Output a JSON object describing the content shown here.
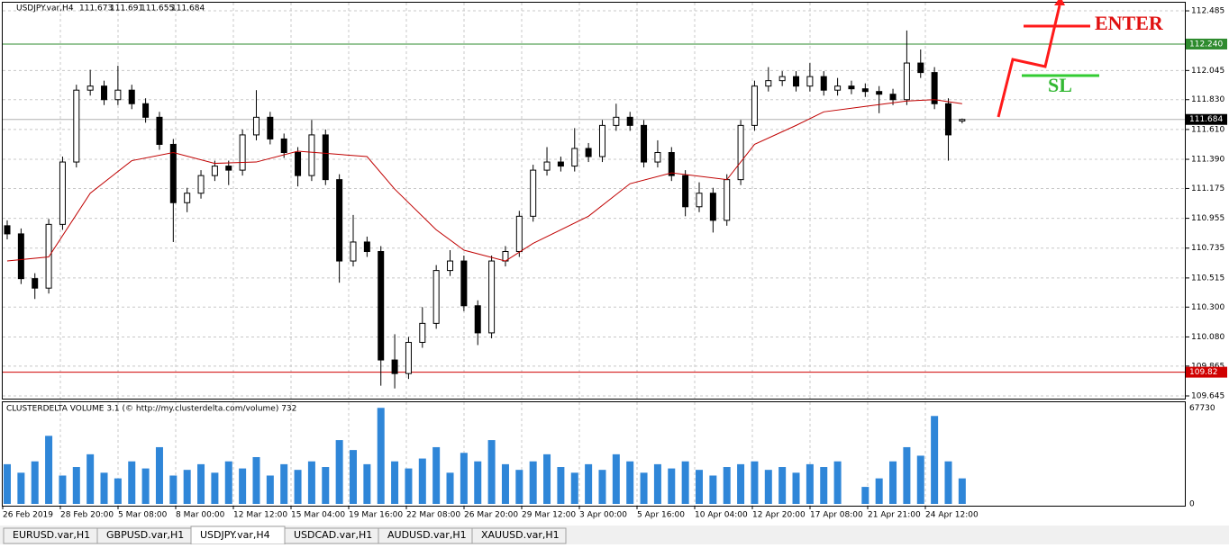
{
  "chart_data": {
    "type": "candlestick",
    "symbol": "USDJPY.var,H4",
    "ylim": [
      109.625,
      112.545
    ],
    "yticks": [
      112.485,
      112.045,
      {
        "value": 111.83,
        "label": "111.830"
      },
      {
        "value": 111.61,
        "label": "111.610"
      },
      {
        "value": 111.39,
        "label": "111.390"
      },
      111.175,
      110.955,
      110.735,
      110.515,
      {
        "value": 110.3,
        "label": "110.300"
      },
      {
        "value": 110.08,
        "label": "110.080"
      },
      109.865,
      109.645
    ],
    "grid": true,
    "time_labels": [
      "26 Feb 2019",
      "28 Feb 20:00",
      "5 Mar 08:00",
      "8 Mar 00:00",
      "12 Mar 12:00",
      "15 Mar 04:00",
      "19 Mar 16:00",
      "22 Mar 08:00",
      "26 Mar 20:00",
      "29 Mar 12:00",
      "3 Apr 00:00",
      "5 Apr 16:00",
      "10 Apr 04:00",
      "12 Apr 20:00",
      "17 Apr 08:00",
      "21 Apr 21:00",
      "24 Apr 12:00"
    ],
    "candles": [
      [
        110.9,
        110.94,
        110.8,
        110.84
      ],
      [
        110.84,
        110.88,
        110.47,
        110.51
      ],
      [
        110.51,
        110.55,
        110.36,
        110.44
      ],
      [
        110.44,
        110.95,
        110.4,
        110.91
      ],
      [
        110.91,
        111.41,
        110.87,
        111.37
      ],
      [
        111.37,
        111.94,
        111.33,
        111.9
      ],
      [
        111.9,
        112.05,
        111.86,
        111.93
      ],
      [
        111.93,
        111.97,
        111.79,
        111.83
      ],
      [
        111.83,
        112.08,
        111.79,
        111.9
      ],
      [
        111.9,
        111.94,
        111.76,
        111.8
      ],
      [
        111.8,
        111.84,
        111.66,
        111.7
      ],
      [
        111.7,
        111.74,
        111.46,
        111.5
      ],
      [
        111.5,
        111.54,
        110.78,
        111.07
      ],
      [
        111.07,
        111.18,
        111.0,
        111.14
      ],
      [
        111.14,
        111.31,
        111.1,
        111.27
      ],
      [
        111.27,
        111.38,
        111.23,
        111.34
      ],
      [
        111.34,
        111.38,
        111.2,
        111.31
      ],
      [
        111.31,
        111.61,
        111.27,
        111.57
      ],
      [
        111.57,
        111.9,
        111.53,
        111.7
      ],
      [
        111.7,
        111.74,
        111.5,
        111.54
      ],
      [
        111.54,
        111.58,
        111.4,
        111.44
      ],
      [
        111.44,
        111.48,
        111.19,
        111.27
      ],
      [
        111.27,
        111.68,
        111.23,
        111.57
      ],
      [
        111.57,
        111.61,
        111.2,
        111.24
      ],
      [
        111.24,
        111.28,
        110.48,
        110.64
      ],
      [
        110.64,
        110.98,
        110.6,
        110.78
      ],
      [
        110.78,
        110.82,
        110.67,
        110.71
      ],
      [
        110.71,
        110.75,
        109.72,
        109.91
      ],
      [
        109.91,
        110.1,
        109.7,
        109.81
      ],
      [
        109.81,
        110.08,
        109.77,
        110.04
      ],
      [
        110.04,
        110.3,
        110.0,
        110.18
      ],
      [
        110.18,
        110.61,
        110.14,
        110.57
      ],
      [
        110.57,
        110.72,
        110.53,
        110.64
      ],
      [
        110.64,
        110.68,
        110.27,
        110.31
      ],
      [
        110.31,
        110.35,
        110.02,
        110.11
      ],
      [
        110.11,
        110.68,
        110.07,
        110.64
      ],
      [
        110.64,
        110.75,
        110.6,
        110.71
      ],
      [
        110.71,
        111.01,
        110.67,
        110.97
      ],
      [
        110.97,
        111.35,
        110.93,
        111.31
      ],
      [
        111.31,
        111.48,
        111.27,
        111.37
      ],
      [
        111.37,
        111.41,
        111.3,
        111.34
      ],
      [
        111.34,
        111.62,
        111.3,
        111.47
      ],
      [
        111.47,
        111.51,
        111.37,
        111.41
      ],
      [
        111.41,
        111.68,
        111.37,
        111.64
      ],
      [
        111.64,
        111.8,
        111.6,
        111.7
      ],
      [
        111.7,
        111.74,
        111.6,
        111.64
      ],
      [
        111.64,
        111.68,
        111.33,
        111.37
      ],
      [
        111.37,
        111.53,
        111.33,
        111.44
      ],
      [
        111.44,
        111.48,
        111.23,
        111.27
      ],
      [
        111.27,
        111.31,
        110.97,
        111.04
      ],
      [
        111.04,
        111.22,
        111.0,
        111.14
      ],
      [
        111.14,
        111.18,
        110.85,
        110.94
      ],
      [
        110.94,
        111.28,
        110.9,
        111.24
      ],
      [
        111.24,
        111.68,
        111.2,
        111.64
      ],
      [
        111.64,
        111.97,
        111.6,
        111.93
      ],
      [
        111.93,
        112.07,
        111.89,
        111.97
      ],
      [
        111.97,
        112.04,
        111.93,
        112.0
      ],
      [
        112.0,
        112.04,
        111.89,
        111.93
      ],
      [
        111.93,
        112.1,
        111.89,
        112.0
      ],
      [
        112.0,
        112.04,
        111.86,
        111.9
      ],
      [
        111.9,
        111.99,
        111.86,
        111.93
      ],
      [
        111.93,
        111.97,
        111.87,
        111.91
      ],
      [
        111.91,
        111.95,
        111.85,
        111.89
      ],
      [
        111.89,
        111.93,
        111.73,
        111.87
      ],
      [
        111.87,
        111.91,
        111.79,
        111.83
      ],
      [
        111.83,
        112.34,
        111.79,
        112.1
      ],
      [
        112.1,
        112.2,
        111.99,
        112.03
      ],
      [
        112.03,
        112.07,
        111.76,
        111.8
      ],
      [
        111.8,
        111.84,
        111.38,
        111.57
      ],
      [
        111.673,
        111.691,
        111.655,
        111.684
      ]
    ],
    "moving_average": {
      "color": "#c00000",
      "x": [
        0,
        3,
        6,
        9,
        12,
        15,
        18,
        21,
        26,
        28,
        31,
        33,
        36,
        38,
        42,
        45,
        48,
        52,
        54,
        57,
        59,
        62,
        65,
        67,
        69
      ],
      "values": [
        110.64,
        110.67,
        111.14,
        111.38,
        111.44,
        111.36,
        111.37,
        111.45,
        111.41,
        111.17,
        110.87,
        110.72,
        110.64,
        110.77,
        110.97,
        111.21,
        111.29,
        111.24,
        111.5,
        111.64,
        111.74,
        111.78,
        111.82,
        111.83,
        111.8
      ]
    },
    "levels": [
      {
        "value": {
          "value": 112.24,
          "label": "112.240"
        },
        "color": "#2e8b2e"
      },
      {
        "value": 109.82,
        "color": "#d00000"
      }
    ],
    "annotations": {
      "enter": "ENTER",
      "sl": "SL"
    },
    "volume": {
      "title": "CLUSTERDELTA VOLUME 3.1 (© http://my.clusterdelta.com/volume) 732",
      "color": "#2f86d8",
      "ylim": [
        0,
        71700
      ],
      "yticks": [
        67730,
        0
      ],
      "values": [
        28000,
        22000,
        30000,
        48000,
        20000,
        26000,
        35000,
        22000,
        18000,
        30000,
        25000,
        40000,
        20000,
        24000,
        28000,
        22000,
        30000,
        25000,
        33000,
        20000,
        28000,
        24000,
        30000,
        26000,
        45000,
        38000,
        28000,
        67730,
        30000,
        25000,
        32000,
        40000,
        22000,
        36000,
        30000,
        45000,
        28000,
        24000,
        30000,
        35000,
        26000,
        22000,
        28000,
        24000,
        35000,
        30000,
        22000,
        28000,
        25000,
        30000,
        24000,
        20000,
        26000,
        28000,
        30000,
        24000,
        26000,
        22000,
        28000,
        26000,
        30000,
        0,
        12000,
        18000,
        30000,
        40000,
        34000,
        62000,
        30000,
        18000
      ]
    },
    "tabs": [
      "EURUSD.var,H1",
      "GBPUSD.var,H1",
      "USDJPY.var,H4",
      "USDCAD.var,H1",
      "AUDUSD.var,H1",
      "XAUUSD.var,H1"
    ],
    "active_tab": 2
  }
}
